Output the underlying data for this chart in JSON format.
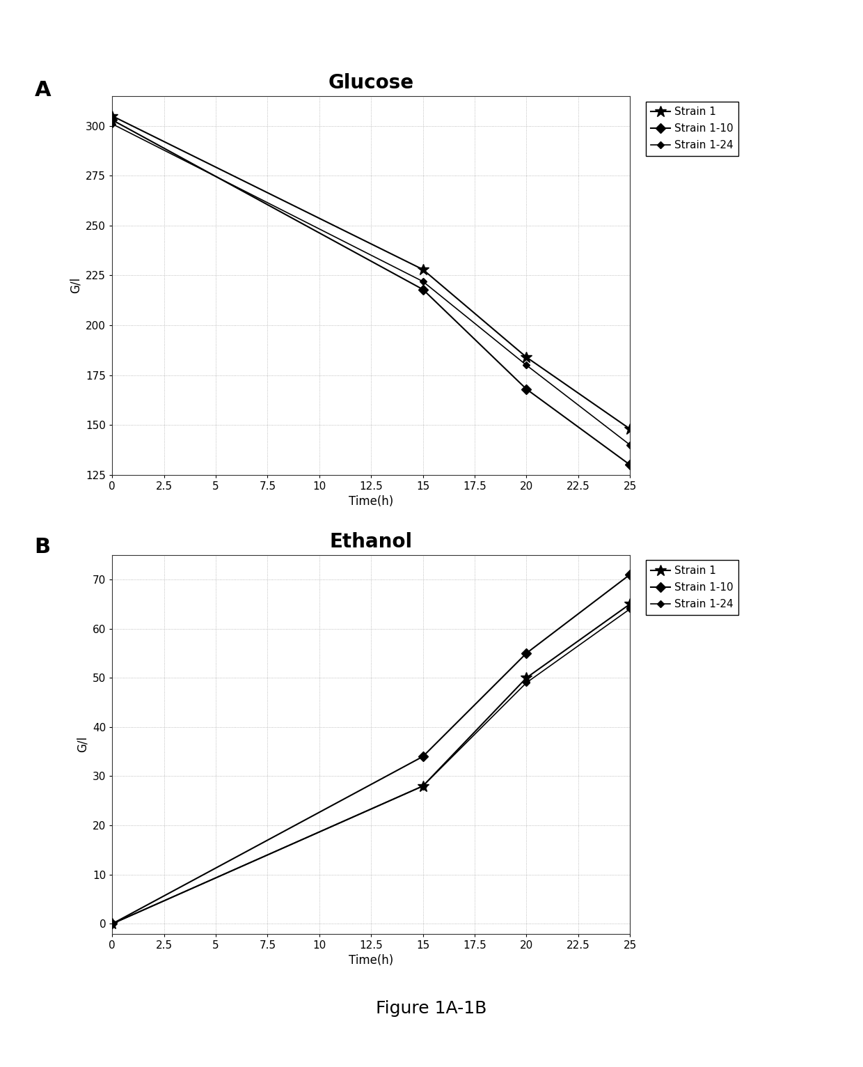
{
  "glucose": {
    "title": "Glucose",
    "xlabel": "Time(h)",
    "ylabel": "G/l",
    "xlim": [
      0,
      25
    ],
    "ylim": [
      125,
      315
    ],
    "xticks": [
      0,
      2.5,
      5,
      7.5,
      10,
      12.5,
      15,
      17.5,
      20,
      22.5,
      25
    ],
    "yticks": [
      125,
      150,
      175,
      200,
      225,
      250,
      275,
      300
    ],
    "series": [
      {
        "label": "Strain 1",
        "x": [
          0,
          15,
          20,
          25
        ],
        "y": [
          305,
          228,
          184,
          148
        ],
        "color": "#000000",
        "marker": "*",
        "markersize": 12,
        "linewidth": 1.5,
        "linestyle": "-"
      },
      {
        "label": "Strain 1-10",
        "x": [
          0,
          15,
          20,
          25
        ],
        "y": [
          303,
          218,
          168,
          130
        ],
        "color": "#000000",
        "marker": "D",
        "markersize": 7,
        "linewidth": 1.5,
        "linestyle": "-"
      },
      {
        "label": "Strain 1-24",
        "x": [
          0,
          15,
          20,
          25
        ],
        "y": [
          301,
          222,
          180,
          140
        ],
        "color": "#000000",
        "marker": "D",
        "markersize": 5,
        "linewidth": 1.2,
        "linestyle": "-"
      }
    ]
  },
  "ethanol": {
    "title": "Ethanol",
    "xlabel": "Time(h)",
    "ylabel": "G/l",
    "xlim": [
      0,
      25
    ],
    "ylim": [
      -2,
      75
    ],
    "xticks": [
      0,
      2.5,
      5,
      7.5,
      10,
      12.5,
      15,
      17.5,
      20,
      22.5,
      25
    ],
    "yticks": [
      0,
      10,
      20,
      30,
      40,
      50,
      60,
      70
    ],
    "series": [
      {
        "label": "Strain 1",
        "x": [
          0,
          15,
          20,
          25
        ],
        "y": [
          0,
          28,
          50,
          65
        ],
        "color": "#000000",
        "marker": "*",
        "markersize": 12,
        "linewidth": 1.5,
        "linestyle": "-"
      },
      {
        "label": "Strain 1-10",
        "x": [
          0,
          15,
          20,
          25
        ],
        "y": [
          0,
          34,
          55,
          71
        ],
        "color": "#000000",
        "marker": "D",
        "markersize": 7,
        "linewidth": 1.5,
        "linestyle": "-"
      },
      {
        "label": "Strain 1-24",
        "x": [
          0,
          15,
          20,
          25
        ],
        "y": [
          0,
          28,
          49,
          64
        ],
        "color": "#000000",
        "marker": "D",
        "markersize": 5,
        "linewidth": 1.2,
        "linestyle": "-"
      }
    ]
  },
  "figure_caption": "Figure 1A-1B",
  "legend_labels": [
    "Strain 1",
    "Strain 1-10",
    "Strain 1-24"
  ],
  "background_color": "#ffffff",
  "panel_labels": [
    "A",
    "B"
  ],
  "title_fontsize": 20,
  "tick_fontsize": 11,
  "label_fontsize": 12,
  "legend_fontsize": 11,
  "panel_label_fontsize": 22,
  "caption_fontsize": 18
}
